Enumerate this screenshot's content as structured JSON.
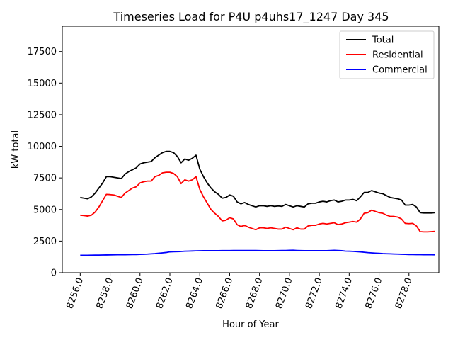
{
  "chart_data": {
    "type": "line",
    "title": "Timeseries Load for P4U p4uhs17_1247  Day 345",
    "xlabel": "Hour of Year",
    "ylabel": "kW total",
    "xlim": [
      8254.8,
      8280.0
    ],
    "ylim": [
      0,
      19500
    ],
    "xticks": [
      8256,
      8258,
      8260,
      8262,
      8264,
      8266,
      8268,
      8270,
      8272,
      8274,
      8276,
      8278
    ],
    "xtick_labels": [
      "8256.0",
      "8258.0",
      "8260.0",
      "8262.0",
      "8264.0",
      "8266.0",
      "8268.0",
      "8270.0",
      "8272.0",
      "8274.0",
      "8276.0",
      "8278.0"
    ],
    "yticks": [
      0,
      2500,
      5000,
      7500,
      10000,
      12500,
      15000,
      17500
    ],
    "ytick_labels": [
      "0",
      "2500",
      "5000",
      "7500",
      "10000",
      "12500",
      "15000",
      "17500"
    ],
    "legend_position": "top-right",
    "x": [
      8256.0,
      8256.25,
      8256.5,
      8256.75,
      8257.0,
      8257.25,
      8257.5,
      8257.75,
      8258.0,
      8258.25,
      8258.5,
      8258.75,
      8259.0,
      8259.25,
      8259.5,
      8259.75,
      8260.0,
      8260.25,
      8260.5,
      8260.75,
      8261.0,
      8261.25,
      8261.5,
      8261.75,
      8262.0,
      8262.25,
      8262.5,
      8262.75,
      8263.0,
      8263.25,
      8263.5,
      8263.75,
      8264.0,
      8264.25,
      8264.5,
      8264.75,
      8265.0,
      8265.25,
      8265.5,
      8265.75,
      8266.0,
      8266.25,
      8266.5,
      8266.75,
      8267.0,
      8267.25,
      8267.5,
      8267.75,
      8268.0,
      8268.25,
      8268.5,
      8268.75,
      8269.0,
      8269.25,
      8269.5,
      8269.75,
      8270.0,
      8270.25,
      8270.5,
      8270.75,
      8271.0,
      8271.25,
      8271.5,
      8271.75,
      8272.0,
      8272.25,
      8272.5,
      8272.75,
      8273.0,
      8273.25,
      8273.5,
      8273.75,
      8274.0,
      8274.25,
      8274.5,
      8274.75,
      8275.0,
      8275.25,
      8275.5,
      8275.75,
      8276.0,
      8276.25,
      8276.5,
      8276.75,
      8277.0,
      8277.25,
      8277.5,
      8277.75,
      8278.0,
      8278.25,
      8278.5,
      8278.75,
      8279.0,
      8279.25,
      8279.5,
      8279.75
    ],
    "series": [
      {
        "name": "Total",
        "color": "#000000",
        "values": [
          5950,
          5900,
          5850,
          6000,
          6300,
          6700,
          7100,
          7600,
          7600,
          7550,
          7500,
          7450,
          7800,
          8000,
          8150,
          8300,
          8600,
          8700,
          8750,
          8800,
          9100,
          9300,
          9500,
          9600,
          9600,
          9500,
          9200,
          8700,
          9000,
          8900,
          9050,
          9300,
          8200,
          7600,
          7100,
          6700,
          6400,
          6200,
          5900,
          5950,
          6150,
          6050,
          5600,
          5450,
          5550,
          5400,
          5300,
          5200,
          5300,
          5300,
          5250,
          5300,
          5250,
          5280,
          5250,
          5400,
          5300,
          5200,
          5300,
          5250,
          5200,
          5450,
          5500,
          5500,
          5600,
          5650,
          5600,
          5700,
          5750,
          5600,
          5650,
          5750,
          5750,
          5800,
          5700,
          6000,
          6350,
          6350,
          6500,
          6400,
          6300,
          6250,
          6100,
          5950,
          5900,
          5850,
          5750,
          5350,
          5350,
          5400,
          5200,
          4750,
          4720,
          4720,
          4720,
          4750
        ]
      },
      {
        "name": "Residential",
        "color": "#ff0000",
        "values": [
          4550,
          4520,
          4480,
          4550,
          4800,
          5200,
          5700,
          6200,
          6180,
          6150,
          6050,
          5950,
          6300,
          6500,
          6700,
          6800,
          7100,
          7200,
          7250,
          7250,
          7600,
          7700,
          7900,
          7950,
          7950,
          7850,
          7600,
          7050,
          7350,
          7250,
          7350,
          7600,
          6600,
          6000,
          5500,
          5000,
          4700,
          4450,
          4100,
          4150,
          4350,
          4250,
          3800,
          3650,
          3750,
          3600,
          3500,
          3400,
          3550,
          3550,
          3500,
          3550,
          3500,
          3450,
          3450,
          3600,
          3500,
          3400,
          3550,
          3450,
          3450,
          3700,
          3750,
          3750,
          3850,
          3900,
          3850,
          3900,
          3950,
          3800,
          3850,
          3950,
          4000,
          4050,
          4000,
          4250,
          4700,
          4750,
          4950,
          4850,
          4750,
          4700,
          4550,
          4450,
          4450,
          4400,
          4250,
          3900,
          3880,
          3900,
          3700,
          3250,
          3230,
          3230,
          3250,
          3270
        ]
      },
      {
        "name": "Commercial",
        "color": "#0000ff",
        "values": [
          1380,
          1380,
          1380,
          1385,
          1390,
          1395,
          1400,
          1405,
          1410,
          1415,
          1420,
          1425,
          1425,
          1430,
          1435,
          1440,
          1450,
          1460,
          1470,
          1490,
          1510,
          1540,
          1570,
          1600,
          1650,
          1660,
          1670,
          1680,
          1700,
          1710,
          1720,
          1730,
          1735,
          1740,
          1740,
          1740,
          1745,
          1745,
          1750,
          1750,
          1750,
          1755,
          1755,
          1755,
          1755,
          1755,
          1760,
          1760,
          1750,
          1745,
          1740,
          1740,
          1740,
          1750,
          1755,
          1760,
          1770,
          1775,
          1760,
          1750,
          1745,
          1740,
          1740,
          1740,
          1740,
          1740,
          1740,
          1760,
          1770,
          1760,
          1740,
          1710,
          1700,
          1690,
          1670,
          1650,
          1620,
          1590,
          1570,
          1550,
          1530,
          1510,
          1500,
          1490,
          1480,
          1470,
          1460,
          1450,
          1440,
          1440,
          1430,
          1430,
          1420,
          1420,
          1420,
          1415
        ]
      }
    ]
  }
}
